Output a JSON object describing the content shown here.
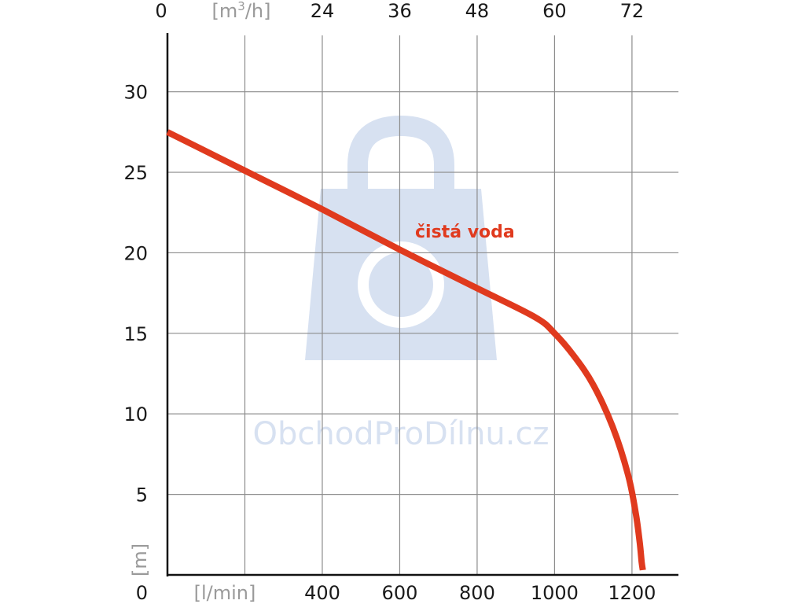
{
  "chart_data": {
    "type": "line",
    "title": "",
    "x_unit_label": "[l/min]",
    "x_top_unit_base": "[m",
    "x_top_unit_sup": "3",
    "x_top_unit_tail": "/h]",
    "y_unit_label": "[m]",
    "x_origin_label": "0",
    "x_top_origin_label": "0",
    "y_origin_label": "0",
    "xlim": [
      0,
      1320
    ],
    "ylim": [
      0,
      33.5
    ],
    "x_ticks": [
      400,
      600,
      800,
      1000,
      1200
    ],
    "x_top_ticks": [
      24,
      36,
      48,
      60,
      72
    ],
    "x_grid": [
      200,
      400,
      600,
      800,
      1000,
      1200
    ],
    "y_ticks": [
      5,
      10,
      15,
      20,
      25,
      30
    ],
    "grid": true,
    "series": [
      {
        "name": "čistá voda",
        "color": "#e03a1e",
        "x": [
          0,
          200,
          400,
          600,
          800,
          950,
          1000,
          1050,
          1100,
          1150,
          1190,
          1210,
          1220,
          1225,
          1228
        ],
        "y": [
          27.5,
          25.1,
          22.7,
          20.2,
          17.8,
          16.0,
          15.0,
          13.6,
          11.8,
          9.2,
          6.2,
          3.8,
          2.0,
          0.8,
          0.3
        ]
      }
    ]
  },
  "watermark": {
    "text": "ObchodProDílnu.cz",
    "color": "#d7e1f1",
    "icon": "shopping-bag-wrench-icon"
  }
}
